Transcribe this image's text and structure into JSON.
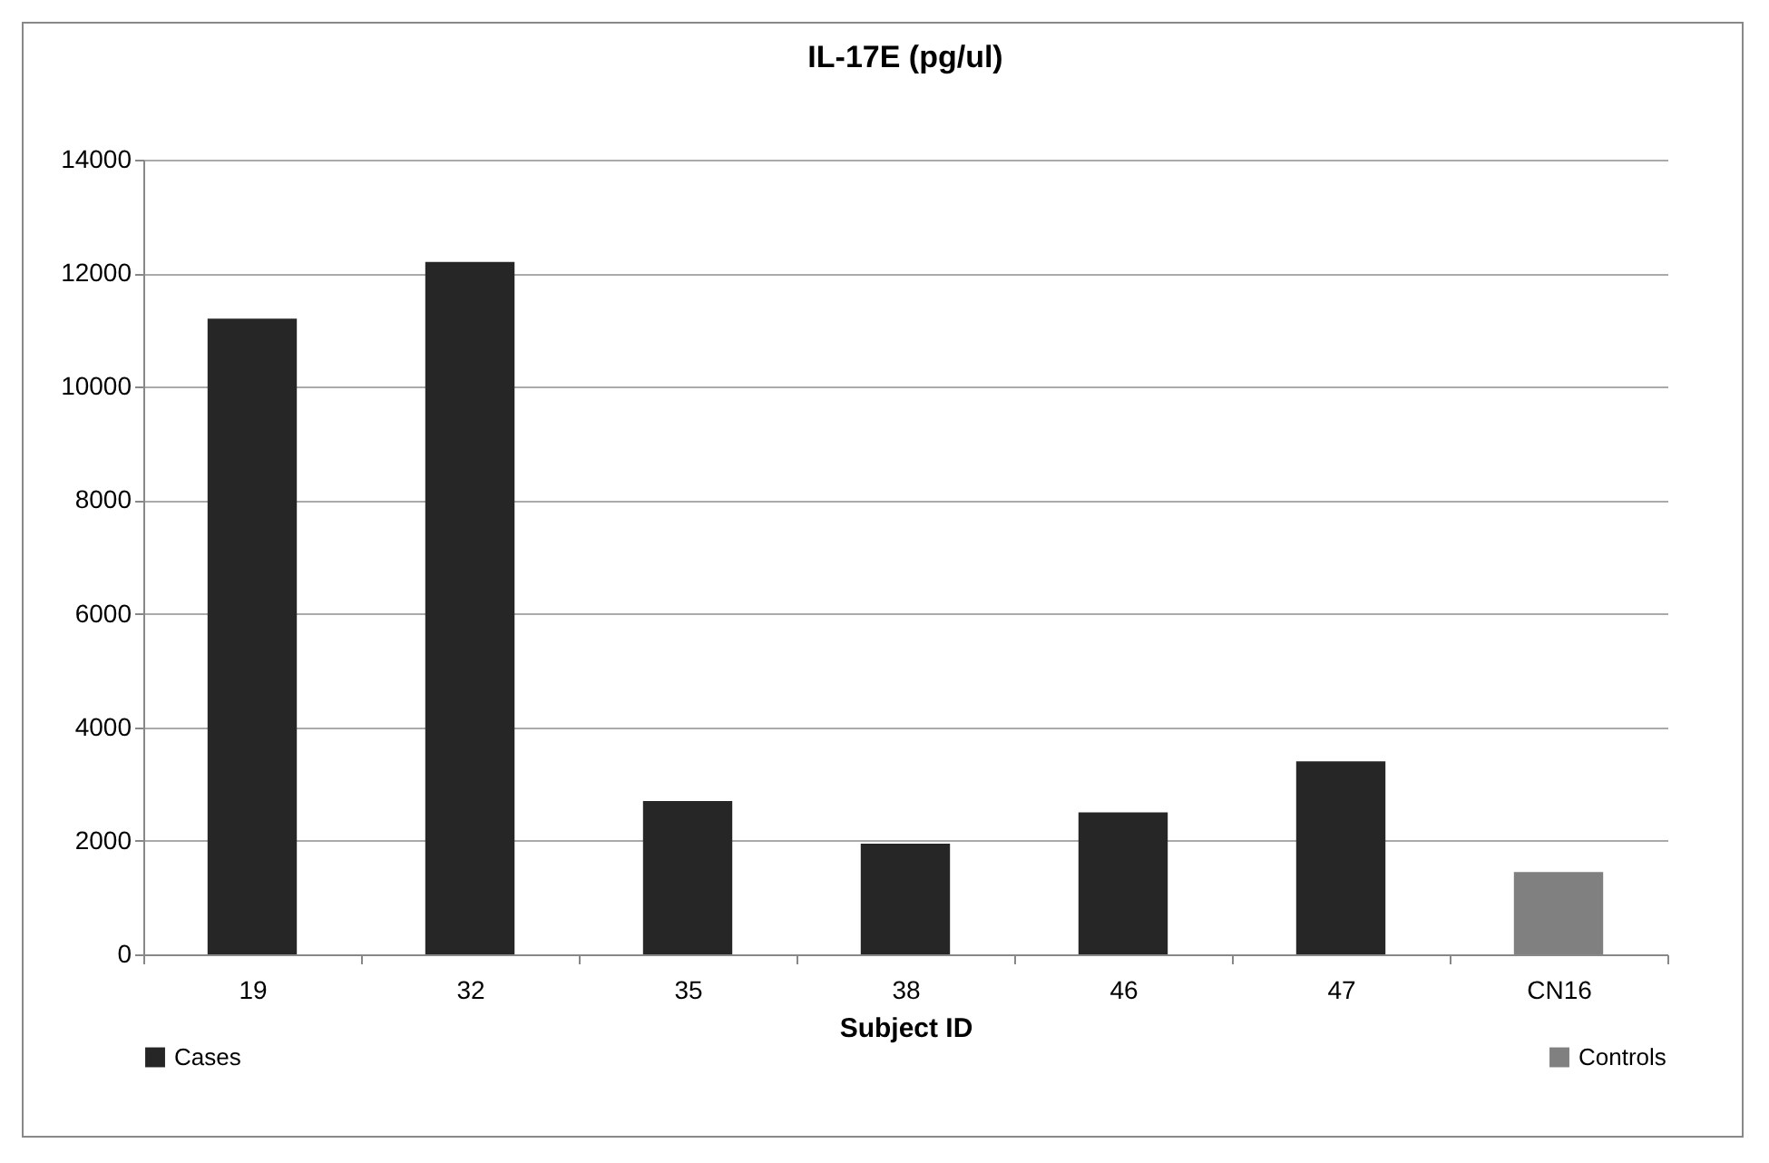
{
  "chart_data": {
    "type": "bar",
    "title": "IL-17E (pg/ul)",
    "xlabel": "Subject ID",
    "categories": [
      "19",
      "32",
      "35",
      "38",
      "46",
      "47",
      "CN16"
    ],
    "series": [
      {
        "name": "Cases",
        "color": "#262626",
        "values": [
          11200,
          12200,
          2700,
          1950,
          2500,
          3400,
          null
        ]
      },
      {
        "name": "Controls",
        "color": "#808080",
        "values": [
          null,
          null,
          null,
          null,
          null,
          null,
          1450
        ]
      }
    ],
    "ylim": [
      0,
      14000
    ],
    "yticks": [
      0,
      2000,
      4000,
      6000,
      8000,
      10000,
      12000,
      14000
    ],
    "grid": "y",
    "legend": "bottom"
  }
}
